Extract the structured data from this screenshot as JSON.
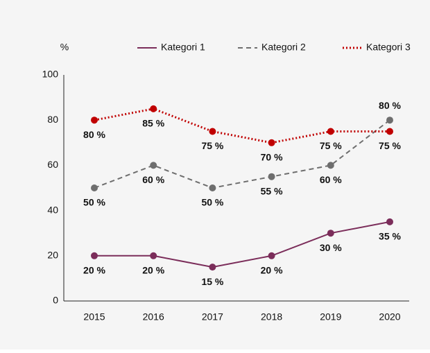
{
  "chart_data": {
    "type": "line",
    "y_label": "%",
    "categories": [
      "2015",
      "2016",
      "2017",
      "2018",
      "2019",
      "2020"
    ],
    "series": [
      {
        "name": "Kategori 1",
        "color": "#7b2d5a",
        "dash": "solid",
        "values": [
          20,
          20,
          15,
          20,
          30,
          35
        ],
        "value_labels": [
          "20 %",
          "20 %",
          "15 %",
          "20 %",
          "30 %",
          "35 %"
        ]
      },
      {
        "name": "Kategori 2",
        "color": "#6e6e6e",
        "dash": "dashed",
        "values": [
          50,
          60,
          50,
          55,
          60,
          80
        ],
        "value_labels": [
          "50 %",
          "60 %",
          "50 %",
          "55 %",
          "60 %",
          "80 %"
        ]
      },
      {
        "name": "Kategori 3",
        "color": "#c00000",
        "dash": "dotted",
        "values": [
          80,
          85,
          75,
          70,
          75,
          75
        ],
        "value_labels": [
          "80 %",
          "85 %",
          "75 %",
          "70 %",
          "75 %",
          "75 %"
        ]
      }
    ],
    "ylim": [
      0,
      100
    ],
    "yticks": [
      0,
      20,
      40,
      60,
      80,
      100
    ],
    "legend": "top-right",
    "grid": false
  }
}
